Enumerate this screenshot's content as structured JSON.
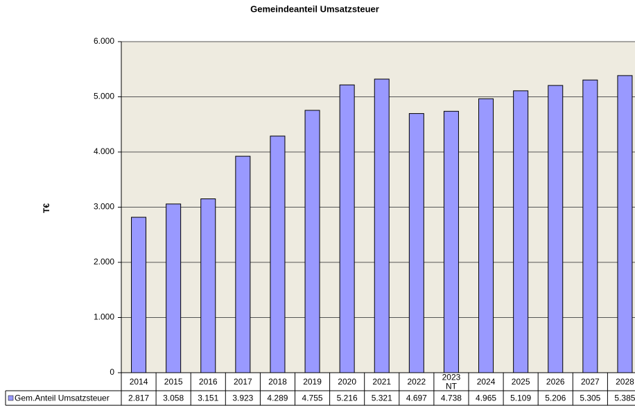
{
  "chart_data": {
    "type": "bar",
    "title": "Gemeindeanteil Umsatzsteuer",
    "y_label": "T€",
    "categories": [
      "2014",
      "2015",
      "2016",
      "2017",
      "2018",
      "2019",
      "2020",
      "2021",
      "2022",
      "2023\nNT",
      "2024",
      "2025",
      "2026",
      "2027",
      "2028"
    ],
    "series": [
      {
        "name": "Gem.Anteil Umsatzsteuer",
        "color": "#9999ff",
        "values": [
          2817,
          3058,
          3151,
          3923,
          4289,
          4755,
          5216,
          5321,
          4697,
          4738,
          4965,
          5109,
          5206,
          5305,
          5385
        ],
        "value_labels": [
          "2.817",
          "3.058",
          "3.151",
          "3.923",
          "4.289",
          "4.755",
          "5.216",
          "5.321",
          "4.697",
          "4.738",
          "4.965",
          "5.109",
          "5.206",
          "5.305",
          "5.385"
        ]
      }
    ],
    "ylim": [
      0,
      6000
    ],
    "yticks": [
      0,
      {
        "value": 1000,
        "label": "1.000"
      },
      {
        "value": 2000,
        "label": "2.000"
      },
      {
        "value": 3000,
        "label": "3.000"
      },
      {
        "value": 4000,
        "label": "4.000"
      },
      {
        "value": 5000,
        "label": "5.000"
      },
      {
        "value": 6000,
        "label": "6.000"
      }
    ],
    "grid": true,
    "legend": "data-table"
  }
}
